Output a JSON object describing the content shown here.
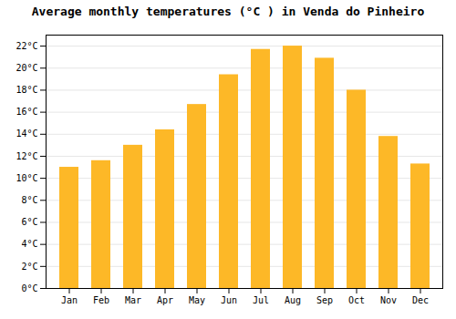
{
  "chart_data": {
    "type": "bar",
    "title": "Average monthly temperatures (°C ) in Venda do Pinheiro",
    "categories": [
      "Jan",
      "Feb",
      "Mar",
      "Apr",
      "May",
      "Jun",
      "Jul",
      "Aug",
      "Sep",
      "Oct",
      "Nov",
      "Dec"
    ],
    "values": [
      11.0,
      11.6,
      13.0,
      14.4,
      16.7,
      19.4,
      21.7,
      22.0,
      20.9,
      18.0,
      13.8,
      11.3
    ],
    "color": "#FDB827",
    "ylim": [
      0,
      23
    ],
    "yticks": [
      {
        "value": 0,
        "label": "0°C"
      },
      {
        "value": 2,
        "label": "2°C"
      },
      {
        "value": 4,
        "label": "4°C"
      },
      {
        "value": 6,
        "label": "6°C"
      },
      {
        "value": 8,
        "label": "8°C"
      },
      {
        "value": 10,
        "label": "10°C"
      },
      {
        "value": 12,
        "label": "12°C"
      },
      {
        "value": 14,
        "label": "14°C"
      },
      {
        "value": 16,
        "label": "16°C"
      },
      {
        "value": 18,
        "label": "18°C"
      },
      {
        "value": 20,
        "label": "20°C"
      },
      {
        "value": 22,
        "label": "22°C"
      }
    ],
    "grid": true
  }
}
